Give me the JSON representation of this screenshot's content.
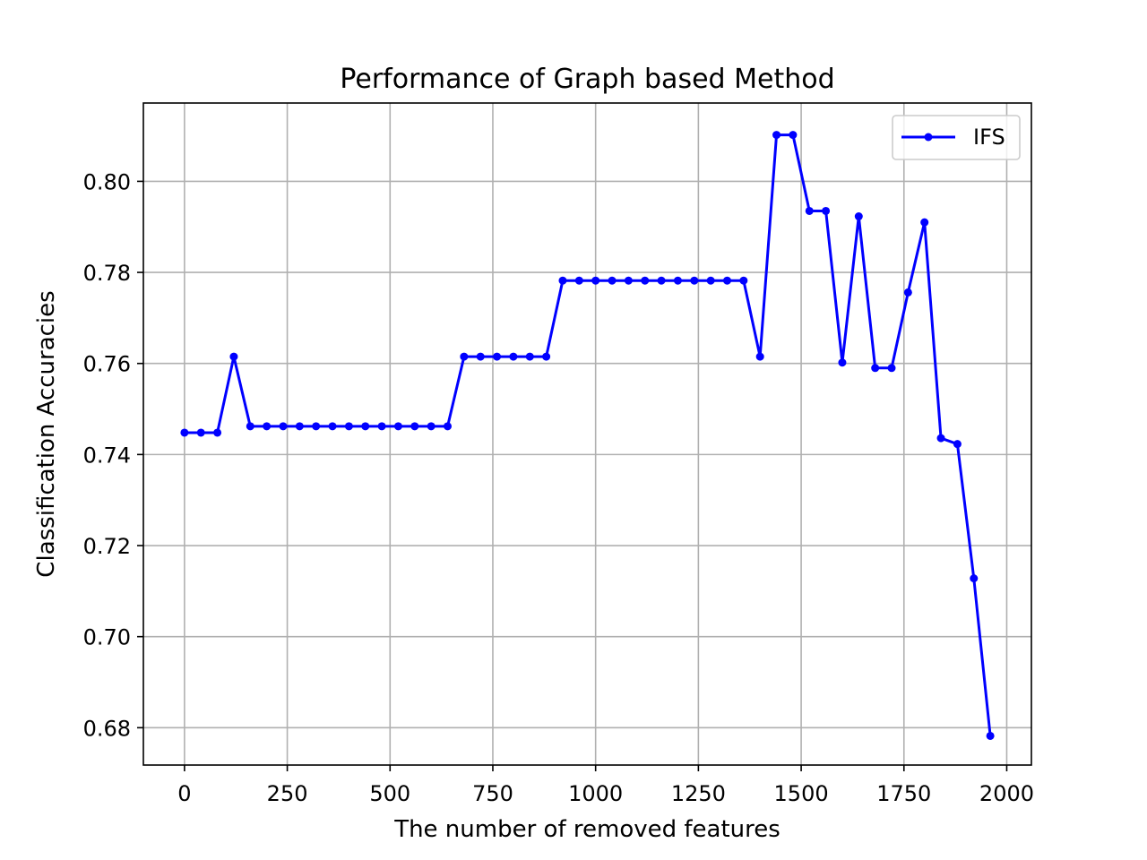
{
  "chart_data": {
    "type": "line",
    "title": "Performance of Graph based Method",
    "xlabel": "The number of removed features",
    "ylabel": "Classification Accuracies",
    "xlim": [
      -100,
      2060
    ],
    "ylim": [
      0.6718,
      0.8172
    ],
    "xticks": [
      0,
      250,
      500,
      750,
      1000,
      1250,
      1500,
      1750,
      2000
    ],
    "xtick_labels": [
      "0",
      "250",
      "500",
      "750",
      "1000",
      "1250",
      "1500",
      "1750",
      "2000"
    ],
    "yticks": [
      0.68,
      0.7,
      0.72,
      0.74,
      0.76,
      0.78,
      0.8
    ],
    "ytick_labels": [
      "0.68",
      "0.70",
      "0.72",
      "0.74",
      "0.76",
      "0.78",
      "0.80"
    ],
    "grid": true,
    "legend_position": "top-right",
    "series": [
      {
        "name": "IFS",
        "color": "#0000ff",
        "marker": "circle",
        "x": [
          0,
          40,
          80,
          120,
          160,
          200,
          240,
          280,
          320,
          360,
          400,
          440,
          480,
          520,
          560,
          600,
          640,
          680,
          720,
          760,
          800,
          840,
          880,
          920,
          960,
          1000,
          1040,
          1080,
          1120,
          1160,
          1200,
          1240,
          1280,
          1320,
          1360,
          1400,
          1440,
          1480,
          1520,
          1560,
          1600,
          1640,
          1680,
          1720,
          1760,
          1800,
          1840,
          1880,
          1920,
          1960
        ],
        "values": [
          0.7448,
          0.7448,
          0.7448,
          0.7615,
          0.7462,
          0.7462,
          0.7462,
          0.7462,
          0.7462,
          0.7462,
          0.7462,
          0.7462,
          0.7462,
          0.7462,
          0.7462,
          0.7462,
          0.7462,
          0.7615,
          0.7615,
          0.7615,
          0.7615,
          0.7615,
          0.7615,
          0.7782,
          0.7782,
          0.7782,
          0.7782,
          0.7782,
          0.7782,
          0.7782,
          0.7782,
          0.7782,
          0.7782,
          0.7782,
          0.7782,
          0.7615,
          0.8102,
          0.8102,
          0.7935,
          0.7935,
          0.7602,
          0.7923,
          0.759,
          0.759,
          0.7756,
          0.791,
          0.7436,
          0.7423,
          0.7128,
          0.6782
        ]
      }
    ]
  }
}
